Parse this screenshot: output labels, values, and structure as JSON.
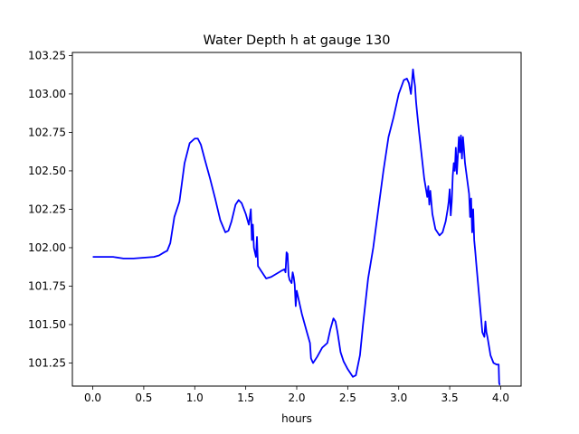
{
  "chart_data": {
    "type": "line",
    "title": "Water Depth h at gauge 130",
    "xlabel": "hours",
    "ylabel": "",
    "xlim": [
      -0.2,
      4.2
    ],
    "ylim": [
      101.1,
      103.27
    ],
    "xticks": [
      0.0,
      0.5,
      1.0,
      1.5,
      2.0,
      2.5,
      3.0,
      3.5,
      4.0
    ],
    "xtick_labels": [
      "0.0",
      "0.5",
      "1.0",
      "1.5",
      "2.0",
      "2.5",
      "3.0",
      "3.5",
      "4.0"
    ],
    "yticks": [
      101.25,
      101.5,
      101.75,
      102.0,
      102.25,
      102.5,
      102.75,
      103.0,
      103.25
    ],
    "ytick_labels": [
      "101.25",
      "101.50",
      "101.75",
      "102.00",
      "102.25",
      "102.50",
      "102.75",
      "103.00",
      "103.25"
    ],
    "grid": false,
    "series": [
      {
        "color": "#0000ff",
        "x": [
          0.0,
          0.1,
          0.2,
          0.3,
          0.4,
          0.5,
          0.6,
          0.65,
          0.7,
          0.73,
          0.76,
          0.8,
          0.85,
          0.9,
          0.95,
          1.0,
          1.03,
          1.06,
          1.1,
          1.15,
          1.2,
          1.25,
          1.3,
          1.33,
          1.36,
          1.4,
          1.43,
          1.46,
          1.5,
          1.53,
          1.55,
          1.56,
          1.57,
          1.58,
          1.59,
          1.6,
          1.61,
          1.62,
          1.63,
          1.65,
          1.7,
          1.75,
          1.8,
          1.85,
          1.88,
          1.89,
          1.9,
          1.91,
          1.92,
          1.93,
          1.95,
          1.96,
          1.97,
          1.98,
          1.99,
          2.0,
          2.02,
          2.05,
          2.1,
          2.13,
          2.14,
          2.16,
          2.2,
          2.25,
          2.3,
          2.33,
          2.36,
          2.38,
          2.4,
          2.43,
          2.46,
          2.5,
          2.55,
          2.58,
          2.62,
          2.65,
          2.7,
          2.75,
          2.8,
          2.85,
          2.9,
          2.95,
          3.0,
          3.05,
          3.08,
          3.1,
          3.12,
          3.14,
          3.15,
          3.16,
          3.17,
          3.18,
          3.2,
          3.25,
          3.28,
          3.29,
          3.3,
          3.31,
          3.33,
          3.36,
          3.4,
          3.43,
          3.46,
          3.48,
          3.49,
          3.5,
          3.51,
          3.52,
          3.53,
          3.54,
          3.55,
          3.56,
          3.57,
          3.58,
          3.59,
          3.6,
          3.61,
          3.62,
          3.63,
          3.64,
          3.65,
          3.66,
          3.67,
          3.68,
          3.69,
          3.7,
          3.71,
          3.72,
          3.73,
          3.74,
          3.75,
          3.76,
          3.78,
          3.8,
          3.82,
          3.84,
          3.85,
          3.86,
          3.87,
          3.88,
          3.9,
          3.93,
          3.96,
          3.97,
          3.98,
          3.985,
          3.99,
          3.995
        ],
        "y": [
          101.94,
          101.94,
          101.94,
          101.93,
          101.93,
          101.935,
          101.94,
          101.95,
          101.97,
          101.98,
          102.03,
          102.2,
          102.3,
          102.55,
          102.68,
          102.71,
          102.71,
          102.67,
          102.57,
          102.45,
          102.32,
          102.18,
          102.1,
          102.11,
          102.17,
          102.28,
          102.31,
          102.29,
          102.22,
          102.15,
          102.25,
          102.05,
          102.15,
          102.0,
          101.97,
          101.94,
          102.07,
          101.88,
          101.87,
          101.85,
          101.8,
          101.81,
          101.83,
          101.85,
          101.86,
          101.84,
          101.97,
          101.96,
          101.82,
          101.79,
          101.77,
          101.84,
          101.81,
          101.76,
          101.62,
          101.72,
          101.66,
          101.57,
          101.45,
          101.38,
          101.28,
          101.25,
          101.29,
          101.35,
          101.38,
          101.47,
          101.54,
          101.52,
          101.45,
          101.32,
          101.26,
          101.21,
          101.16,
          101.17,
          101.3,
          101.5,
          101.8,
          102.0,
          102.25,
          102.5,
          102.72,
          102.85,
          103.0,
          103.09,
          103.1,
          103.07,
          103.0,
          103.16,
          103.1,
          103.05,
          102.95,
          102.88,
          102.75,
          102.45,
          102.33,
          102.4,
          102.28,
          102.37,
          102.22,
          102.12,
          102.08,
          102.1,
          102.17,
          102.25,
          102.3,
          102.38,
          102.21,
          102.3,
          102.47,
          102.55,
          102.5,
          102.65,
          102.48,
          102.6,
          102.72,
          102.62,
          102.73,
          102.58,
          102.72,
          102.64,
          102.55,
          102.5,
          102.45,
          102.4,
          102.35,
          102.2,
          102.32,
          102.1,
          102.25,
          102.05,
          101.98,
          101.9,
          101.75,
          101.6,
          101.45,
          101.42,
          101.52,
          101.45,
          101.42,
          101.38,
          101.3,
          101.25,
          101.24,
          101.24,
          101.24,
          101.12,
          101.11,
          101.11
        ]
      }
    ]
  }
}
